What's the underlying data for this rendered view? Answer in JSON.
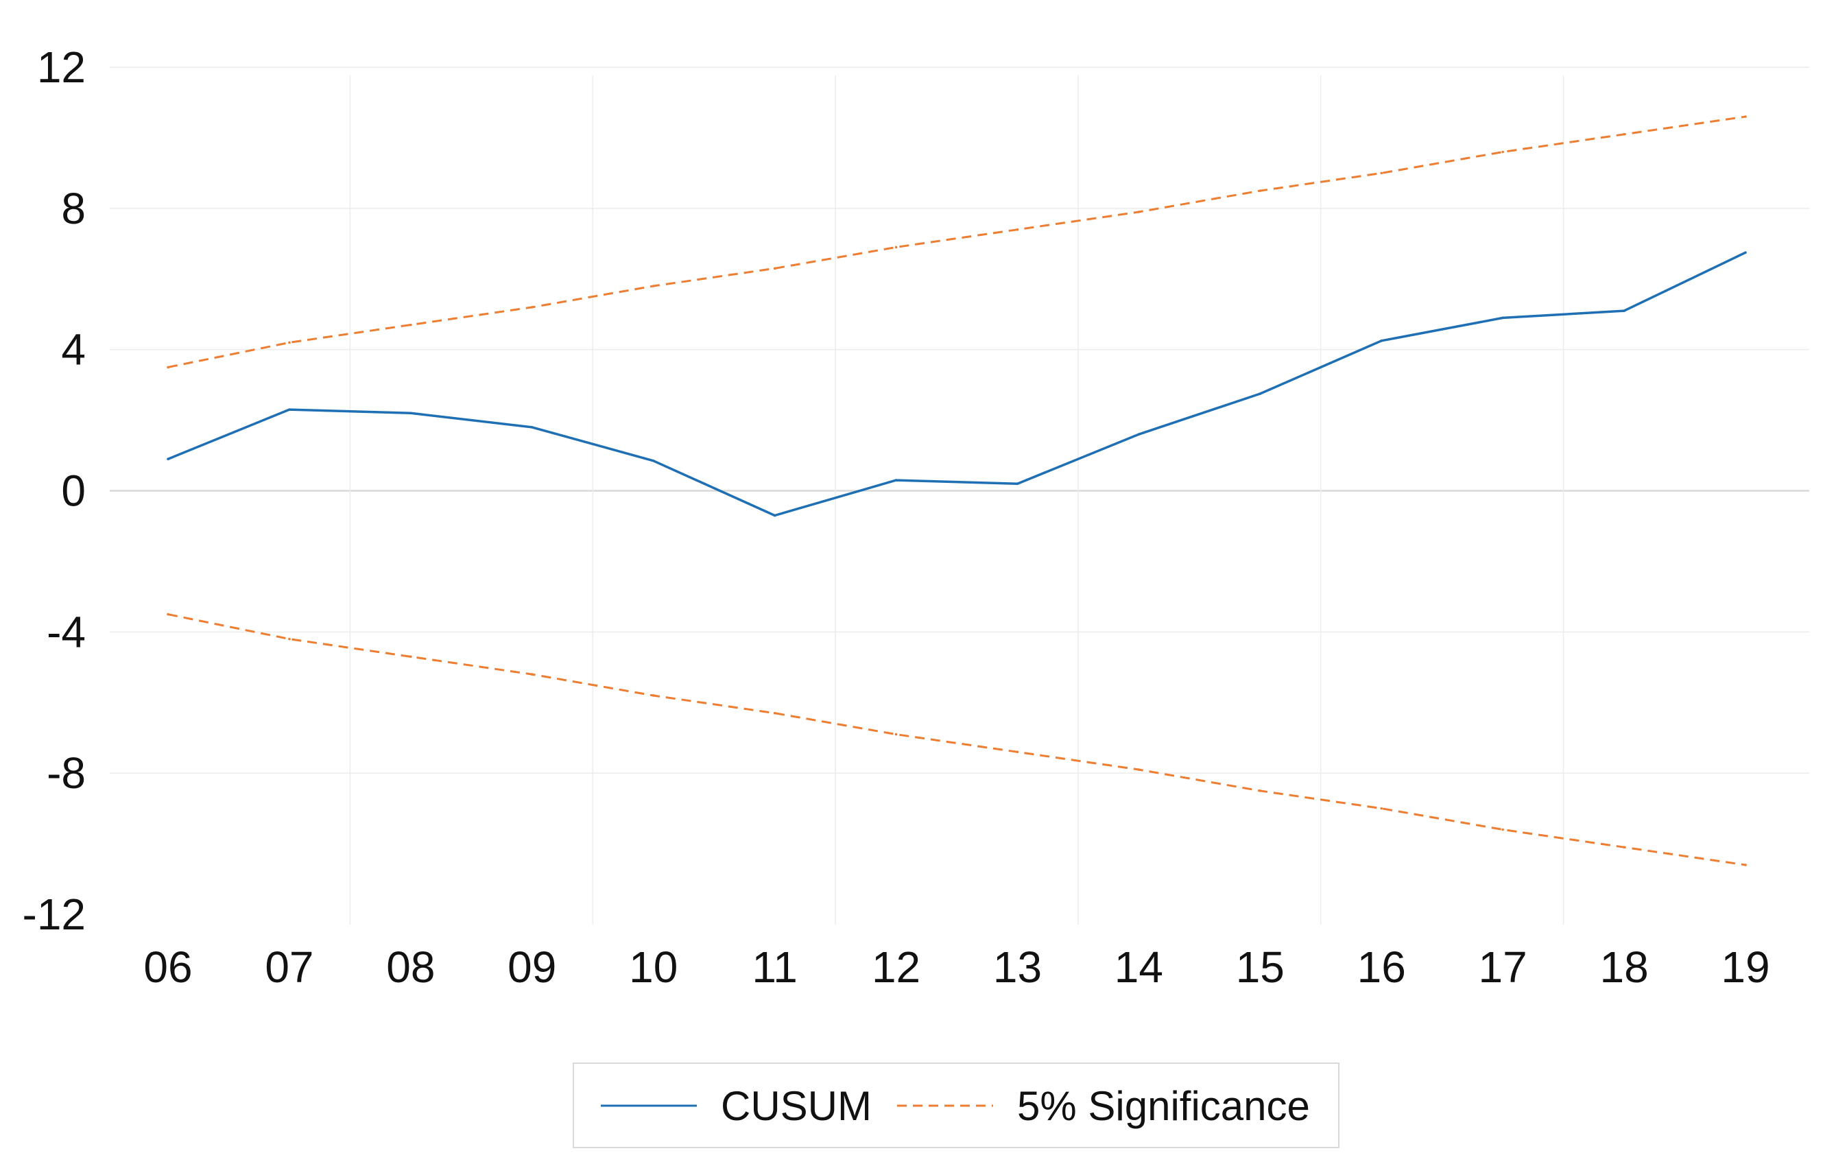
{
  "chart_data": {
    "type": "line",
    "title": "",
    "xlabel": "",
    "ylabel": "",
    "categories": [
      "06",
      "07",
      "08",
      "09",
      "10",
      "11",
      "12",
      "13",
      "14",
      "15",
      "16",
      "17",
      "18",
      "19"
    ],
    "ylim": [
      -12,
      12
    ],
    "yticks": [
      12,
      8,
      4,
      0,
      -4,
      -8,
      -12
    ],
    "grid": true,
    "legend_position": "bottom",
    "series": [
      {
        "name": "CUSUM",
        "color": "#1f6fb4",
        "style": "solid",
        "values": [
          0.9,
          2.3,
          2.2,
          1.8,
          0.85,
          -0.7,
          0.3,
          0.2,
          1.6,
          2.75,
          4.25,
          4.9,
          5.1,
          6.75
        ]
      },
      {
        "name": "5% Significance",
        "color": "#ed7d31",
        "style": "dashed",
        "values": [
          3.5,
          4.2,
          4.7,
          5.2,
          5.8,
          6.3,
          6.9,
          7.4,
          7.9,
          8.5,
          9.0,
          9.6,
          10.1,
          10.6
        ]
      },
      {
        "name": "",
        "color": "#ed7d31",
        "style": "dashed",
        "values": [
          -3.5,
          -4.2,
          -4.7,
          -5.2,
          -5.8,
          -6.3,
          -6.9,
          -7.4,
          -7.9,
          -8.5,
          -9.0,
          -9.6,
          -10.1,
          -10.6
        ]
      }
    ]
  }
}
